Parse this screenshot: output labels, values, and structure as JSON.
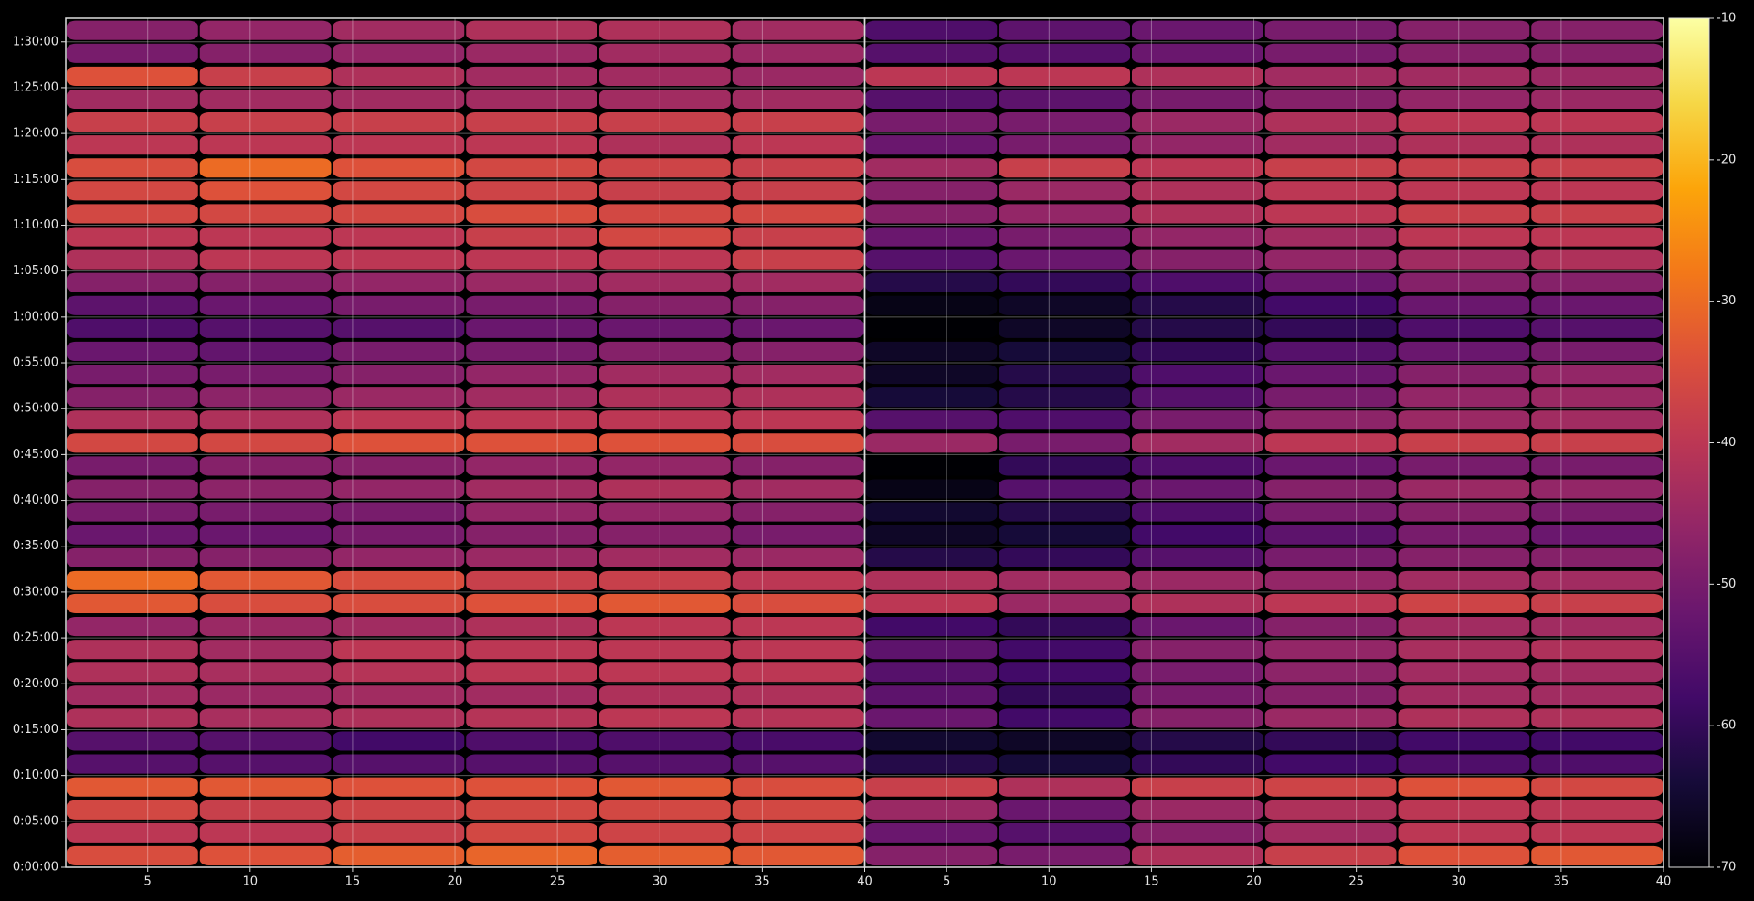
{
  "chart_data": {
    "type": "heatmap",
    "colormap": "inferno",
    "grid": true,
    "ylim": [
      0,
      5554
    ],
    "y_edges": [
      0,
      150,
      300,
      450,
      600,
      750,
      900,
      1050,
      1200,
      1350,
      1500,
      1650,
      1800,
      1950,
      2100,
      2250,
      2400,
      2550,
      2700,
      2850,
      3000,
      3150,
      3300,
      3450,
      3600,
      3750,
      3900,
      4050,
      4200,
      4350,
      4500,
      4650,
      4800,
      4950,
      5100,
      5250,
      5400,
      5550
    ],
    "yticks": [
      {
        "value": 0,
        "label": "0:00:00"
      },
      {
        "value": 300,
        "label": "0:05:00"
      },
      {
        "value": 600,
        "label": "0:10:00"
      },
      {
        "value": 900,
        "label": "0:15:00"
      },
      {
        "value": 1200,
        "label": "0:20:00"
      },
      {
        "value": 1500,
        "label": "0:25:00"
      },
      {
        "value": 1800,
        "label": "0:30:00"
      },
      {
        "value": 2100,
        "label": "0:35:00"
      },
      {
        "value": 2400,
        "label": "0:40:00"
      },
      {
        "value": 2700,
        "label": "0:45:00"
      },
      {
        "value": 3000,
        "label": "0:50:00"
      },
      {
        "value": 3300,
        "label": "0:55:00"
      },
      {
        "value": 3600,
        "label": "1:00:00"
      },
      {
        "value": 3900,
        "label": "1:05:00"
      },
      {
        "value": 4200,
        "label": "1:10:00"
      },
      {
        "value": 4500,
        "label": "1:15:00"
      },
      {
        "value": 4800,
        "label": "1:20:00"
      },
      {
        "value": 5100,
        "label": "1:25:00"
      },
      {
        "value": 5400,
        "label": "1:30:00"
      }
    ],
    "colorbar": {
      "lim": [
        -70,
        -10
      ],
      "ticks": [
        -10,
        -20,
        -30,
        -40,
        -50,
        -60,
        -70
      ]
    },
    "panels": [
      {
        "xlim": [
          1,
          40
        ],
        "xticks": [
          5,
          10,
          15,
          20,
          25,
          30,
          35,
          40
        ],
        "x_edges": [
          1,
          7.5,
          14,
          20.5,
          27,
          33.5,
          40
        ],
        "z": [
          [
            -35,
            -34,
            -32,
            -31,
            -32,
            -33
          ],
          [
            -40,
            -40,
            -38,
            -36,
            -37,
            -37
          ],
          [
            -36,
            -38,
            -37,
            -36,
            -36,
            -36
          ],
          [
            -33,
            -33,
            -34,
            -34,
            -33,
            -35
          ],
          [
            -55,
            -55,
            -55,
            -55,
            -55,
            -55
          ],
          [
            -55,
            -55,
            -58,
            -56,
            -56,
            -57
          ],
          [
            -42,
            -43,
            -42,
            -41,
            -40,
            -41
          ],
          [
            -44,
            -45,
            -44,
            -44,
            -42,
            -42
          ],
          [
            -42,
            -43,
            -41,
            -40,
            -40,
            -40
          ],
          [
            -42,
            -44,
            -40,
            -40,
            -40,
            -40
          ],
          [
            -46,
            -45,
            -44,
            -42,
            -40,
            -40
          ],
          [
            -33,
            -35,
            -35,
            -34,
            -33,
            -35
          ],
          [
            -30,
            -33,
            -35,
            -38,
            -38,
            -40
          ],
          [
            -48,
            -48,
            -46,
            -45,
            -44,
            -45
          ],
          [
            -52,
            -52,
            -50,
            -48,
            -48,
            -50
          ],
          [
            -50,
            -50,
            -50,
            -46,
            -46,
            -48
          ],
          [
            -48,
            -47,
            -46,
            -44,
            -42,
            -44
          ],
          [
            -50,
            -48,
            -48,
            -46,
            -46,
            -48
          ],
          [
            -36,
            -36,
            -34,
            -34,
            -34,
            -35
          ],
          [
            -42,
            -42,
            -40,
            -40,
            -40,
            -40
          ],
          [
            -48,
            -47,
            -45,
            -44,
            -42,
            -42
          ],
          [
            -50,
            -50,
            -48,
            -46,
            -44,
            -44
          ],
          [
            -52,
            -53,
            -50,
            -50,
            -48,
            -48
          ],
          [
            -56,
            -55,
            -55,
            -52,
            -52,
            -52
          ],
          [
            -54,
            -52,
            -50,
            -50,
            -48,
            -48
          ],
          [
            -48,
            -48,
            -46,
            -45,
            -44,
            -44
          ],
          [
            -42,
            -40,
            -40,
            -40,
            -40,
            -38
          ],
          [
            -40,
            -40,
            -40,
            -38,
            -36,
            -38
          ],
          [
            -36,
            -36,
            -36,
            -35,
            -36,
            -36
          ],
          [
            -36,
            -34,
            -36,
            -37,
            -38,
            -38
          ],
          [
            -35,
            -30,
            -34,
            -36,
            -37,
            -38
          ],
          [
            -40,
            -40,
            -40,
            -40,
            -42,
            -40
          ],
          [
            -38,
            -38,
            -38,
            -38,
            -38,
            -38
          ],
          [
            -44,
            -44,
            -44,
            -44,
            -44,
            -44
          ],
          [
            -34,
            -38,
            -42,
            -44,
            -44,
            -45
          ],
          [
            -50,
            -48,
            -46,
            -45,
            -44,
            -45
          ],
          [
            -48,
            -46,
            -44,
            -42,
            -42,
            -44
          ]
        ]
      },
      {
        "xlim": [
          1,
          40
        ],
        "xticks": [
          5,
          10,
          15,
          20,
          25,
          30,
          35,
          40
        ],
        "x_edges": [
          1,
          7.5,
          14,
          20.5,
          27,
          33.5,
          40
        ],
        "z": [
          [
            -48,
            -50,
            -42,
            -38,
            -34,
            -33
          ],
          [
            -52,
            -55,
            -48,
            -44,
            -40,
            -40
          ],
          [
            -45,
            -52,
            -45,
            -42,
            -40,
            -40
          ],
          [
            -38,
            -42,
            -38,
            -37,
            -34,
            -36
          ],
          [
            -62,
            -64,
            -60,
            -58,
            -56,
            -56
          ],
          [
            -65,
            -66,
            -62,
            -60,
            -58,
            -58
          ],
          [
            -52,
            -58,
            -48,
            -45,
            -42,
            -42
          ],
          [
            -54,
            -60,
            -50,
            -48,
            -44,
            -44
          ],
          [
            -55,
            -58,
            -50,
            -47,
            -44,
            -44
          ],
          [
            -54,
            -58,
            -48,
            -46,
            -43,
            -42
          ],
          [
            -58,
            -60,
            -52,
            -48,
            -44,
            -44
          ],
          [
            -40,
            -45,
            -42,
            -40,
            -37,
            -38
          ],
          [
            -42,
            -44,
            -45,
            -46,
            -44,
            -44
          ],
          [
            -62,
            -60,
            -55,
            -50,
            -48,
            -48
          ],
          [
            -66,
            -64,
            -58,
            -54,
            -50,
            -52
          ],
          [
            -65,
            -62,
            -56,
            -50,
            -48,
            -50
          ],
          [
            -68,
            -55,
            -52,
            -48,
            -45,
            -46
          ],
          [
            -70,
            -60,
            -56,
            -52,
            -50,
            -50
          ],
          [
            -45,
            -50,
            -44,
            -40,
            -38,
            -38
          ],
          [
            -55,
            -56,
            -50,
            -47,
            -45,
            -44
          ],
          [
            -64,
            -62,
            -55,
            -50,
            -46,
            -45
          ],
          [
            -66,
            -62,
            -56,
            -52,
            -48,
            -46
          ],
          [
            -66,
            -64,
            -60,
            -55,
            -52,
            -50
          ],
          [
            -70,
            -66,
            -62,
            -60,
            -56,
            -55
          ],
          [
            -68,
            -66,
            -62,
            -58,
            -52,
            -52
          ],
          [
            -62,
            -60,
            -56,
            -52,
            -48,
            -48
          ],
          [
            -55,
            -52,
            -48,
            -46,
            -44,
            -42
          ],
          [
            -52,
            -50,
            -46,
            -44,
            -40,
            -40
          ],
          [
            -48,
            -46,
            -42,
            -40,
            -38,
            -38
          ],
          [
            -48,
            -45,
            -42,
            -40,
            -40,
            -40
          ],
          [
            -44,
            -38,
            -40,
            -38,
            -38,
            -38
          ],
          [
            -52,
            -50,
            -46,
            -44,
            -42,
            -42
          ],
          [
            -50,
            -50,
            -45,
            -42,
            -40,
            -40
          ],
          [
            -55,
            -54,
            -50,
            -48,
            -46,
            -45
          ],
          [
            -40,
            -40,
            -42,
            -44,
            -44,
            -45
          ],
          [
            -55,
            -55,
            -52,
            -50,
            -48,
            -48
          ],
          [
            -56,
            -54,
            -52,
            -50,
            -48,
            -48
          ]
        ]
      }
    ]
  }
}
